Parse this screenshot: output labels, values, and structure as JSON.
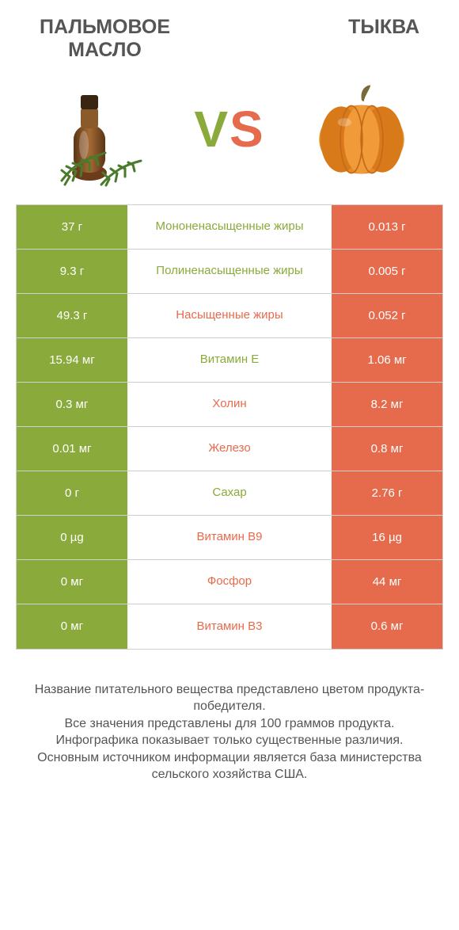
{
  "colors": {
    "left": "#8aaa3b",
    "right": "#e66b4d",
    "rowBorder": "#cfcfcf",
    "text": "#555555"
  },
  "titleLeft": "ПАЛЬМОВОЕ\nМАСЛО",
  "titleRight": "ТЫКВА",
  "vs": {
    "v": "V",
    "s": "S"
  },
  "rows": [
    {
      "left": "37 г",
      "mid": "Мононенасыщенные жиры",
      "right": "0.013 г",
      "winner": "left"
    },
    {
      "left": "9.3 г",
      "mid": "Полиненасыщенные жиры",
      "right": "0.005 г",
      "winner": "left"
    },
    {
      "left": "49.3 г",
      "mid": "Насыщенные жиры",
      "right": "0.052 г",
      "winner": "right"
    },
    {
      "left": "15.94 мг",
      "mid": "Витамин E",
      "right": "1.06 мг",
      "winner": "left"
    },
    {
      "left": "0.3 мг",
      "mid": "Холин",
      "right": "8.2 мг",
      "winner": "right"
    },
    {
      "left": "0.01 мг",
      "mid": "Железо",
      "right": "0.8 мг",
      "winner": "right"
    },
    {
      "left": "0 г",
      "mid": "Сахар",
      "right": "2.76 г",
      "winner": "left"
    },
    {
      "left": "0 µg",
      "mid": "Витамин B9",
      "right": "16 µg",
      "winner": "right"
    },
    {
      "left": "0 мг",
      "mid": "Фосфор",
      "right": "44 мг",
      "winner": "right"
    },
    {
      "left": "0 мг",
      "mid": "Витамин B3",
      "right": "0.6 мг",
      "winner": "right"
    }
  ],
  "footer": "Название питательного вещества представлено цветом продукта-победителя.\nВсе значения представлены для 100 граммов продукта.\nИнфографика показывает только существенные различия.\nОсновным источником информации является база министерства сельского хозяйства США."
}
